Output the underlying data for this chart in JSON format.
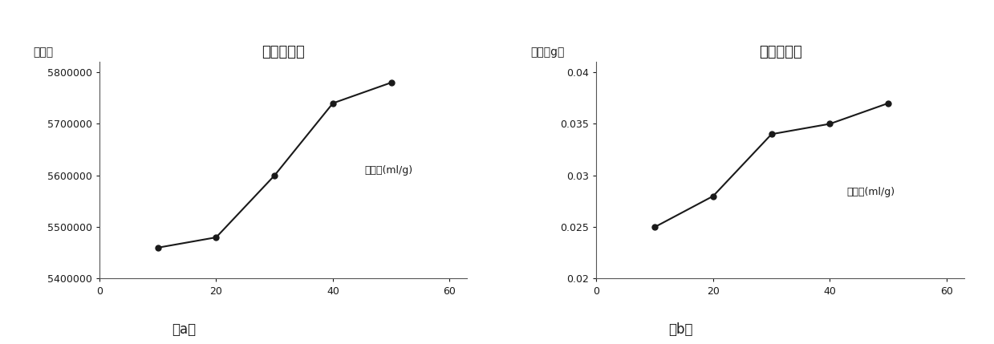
{
  "chart_a": {
    "title": "液料比因素",
    "ylabel": "峰面积",
    "xlabel": "液料比(ml/g)",
    "x": [
      10,
      20,
      30,
      40,
      50
    ],
    "y": [
      5460000,
      5480000,
      5600000,
      5740000,
      5780000
    ],
    "xlim": [
      0,
      63
    ],
    "ylim": [
      5400000,
      5820000
    ],
    "yticks": [
      5400000,
      5500000,
      5600000,
      5700000,
      5800000
    ],
    "xticks": [
      0,
      20,
      40,
      60
    ],
    "label_a": "（a）"
  },
  "chart_b": {
    "title": "液料比因素",
    "ylabel": "重量（g）",
    "xlabel": "液料比(ml/g)",
    "x": [
      10,
      20,
      30,
      40,
      50
    ],
    "y": [
      0.025,
      0.028,
      0.034,
      0.035,
      0.037
    ],
    "xlim": [
      0,
      63
    ],
    "ylim": [
      0.02,
      0.041
    ],
    "yticks": [
      0.02,
      0.025,
      0.03,
      0.035,
      0.04
    ],
    "xticks": [
      0,
      20,
      40,
      60
    ],
    "label_b": "（b）"
  },
  "line_color": "#1a1a1a",
  "marker": "o",
  "marker_size": 5,
  "marker_color": "#1a1a1a",
  "font_color": "#1a1a1a",
  "background_color": "#ffffff"
}
